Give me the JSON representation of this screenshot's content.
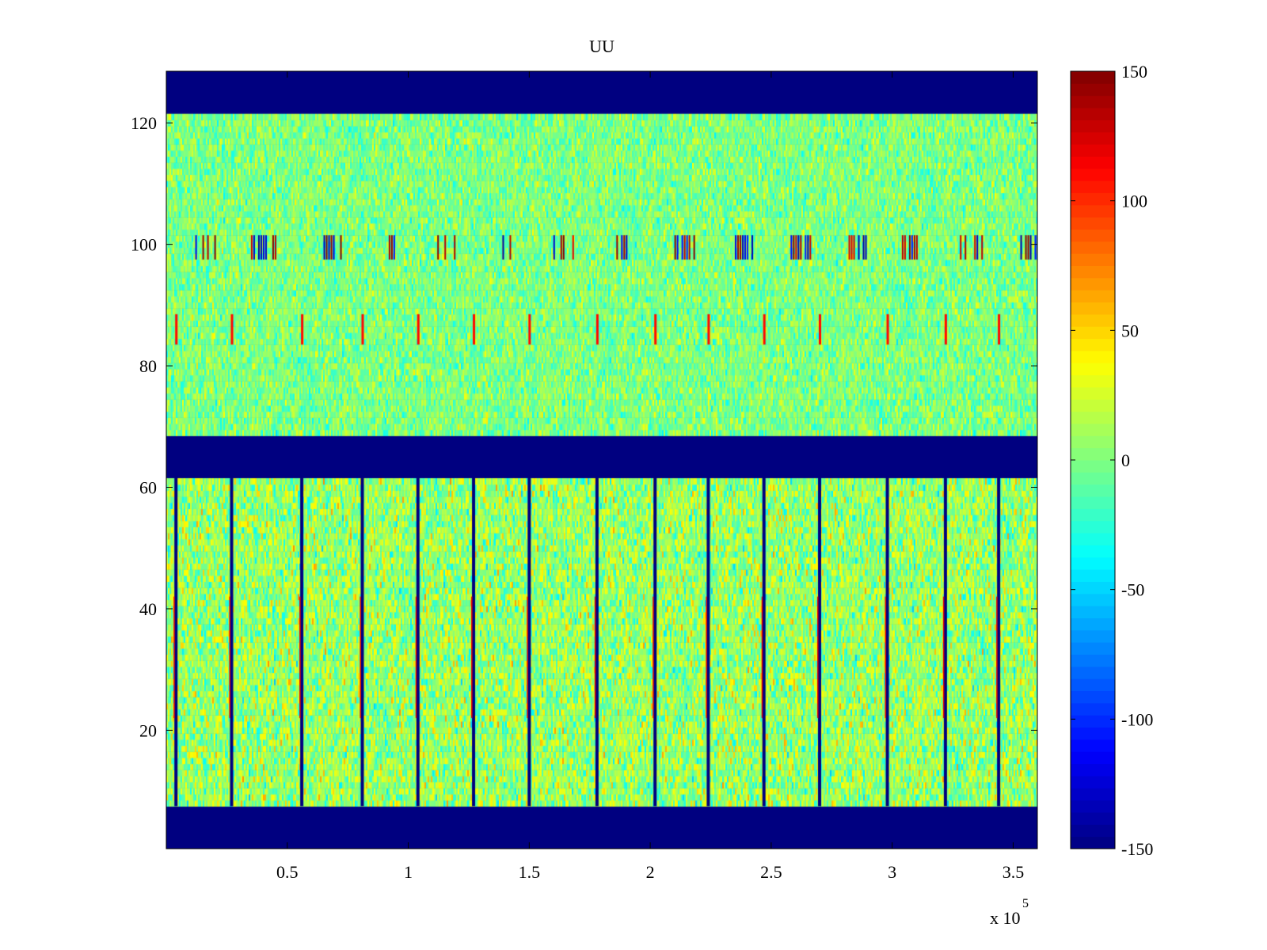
{
  "chart_data": {
    "type": "heatmap",
    "title": "UU",
    "xlabel": "",
    "ylabel": "",
    "x_multiplier_label": "x 10",
    "x_multiplier_exponent": "5",
    "xlim": [
      0,
      3.6
    ],
    "ylim": [
      0.5,
      128.5
    ],
    "x_ticks": [
      0.5,
      1,
      1.5,
      2,
      2.5,
      3,
      3.5
    ],
    "x_tick_labels": [
      "0.5",
      "1",
      "1.5",
      "2",
      "2.5",
      "3",
      "3.5"
    ],
    "y_ticks": [
      20,
      40,
      60,
      80,
      100,
      120
    ],
    "y_tick_labels": [
      "20",
      "40",
      "60",
      "80",
      "100",
      "120"
    ],
    "colorbar": {
      "colormap": "jet",
      "clim": [
        -150,
        150
      ],
      "ticks": [
        -150,
        -100,
        -50,
        0,
        50,
        100,
        150
      ],
      "tick_labels": [
        "-150",
        "-100",
        "-50",
        "0",
        "50",
        "100",
        "150"
      ]
    },
    "fill_value": -150,
    "padding_bands_rows": [
      [
        1,
        7
      ],
      [
        62,
        68
      ],
      [
        122,
        128
      ]
    ],
    "upper_block_rows": [
      69,
      121
    ],
    "lower_block_rows": [
      8,
      61
    ],
    "lower_block_column_dropouts_x": [
      0.04,
      0.27,
      0.56,
      0.81,
      1.04,
      1.27,
      1.5,
      1.78,
      2.02,
      2.24,
      2.47,
      2.7,
      2.98,
      3.22,
      3.44
    ],
    "lower_block_dropout_value": -150,
    "burst_row_center": 100,
    "burst_rows_span": [
      98,
      101
    ],
    "burst_segments_x": [
      [
        0.11,
        0.2
      ],
      [
        0.35,
        0.45
      ],
      [
        0.64,
        0.72
      ],
      [
        0.88,
        0.96
      ],
      [
        1.12,
        1.2
      ],
      [
        1.34,
        1.42
      ],
      [
        1.58,
        1.68
      ],
      [
        1.86,
        1.92
      ],
      [
        2.1,
        2.18
      ],
      [
        2.35,
        2.42
      ],
      [
        2.58,
        2.66
      ],
      [
        2.8,
        2.9
      ],
      [
        3.04,
        3.12
      ],
      [
        3.28,
        3.38
      ],
      [
        3.52,
        3.6
      ]
    ],
    "upper_red_row_span": [
      84,
      88
    ],
    "grid": false,
    "colorbar_position": "right"
  }
}
